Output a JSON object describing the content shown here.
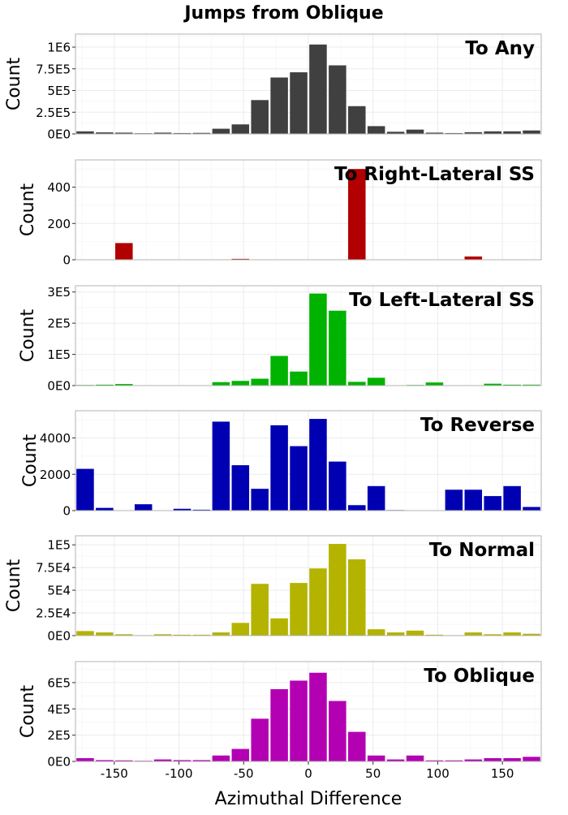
{
  "chart_data": {
    "type": "bar",
    "title": "Jumps from Oblique",
    "xlabel": "Azimuthal Difference",
    "ylabel": "Count",
    "xlim": [
      -180,
      180
    ],
    "x_ticks": [
      -150,
      -100,
      -50,
      0,
      50,
      100,
      150
    ],
    "x_tick_labels": [
      "-150",
      "-100",
      "-50",
      "0",
      "50",
      "100",
      "150"
    ],
    "bin_centers": [
      -172.5,
      -157.5,
      -142.5,
      -127.5,
      -112.5,
      -97.5,
      -82.5,
      -67.5,
      -52.5,
      -37.5,
      -22.5,
      -7.5,
      7.5,
      22.5,
      37.5,
      52.5,
      67.5,
      82.5,
      97.5,
      112.5,
      127.5,
      142.5,
      157.5,
      172.5
    ],
    "grid": true,
    "panels": [
      {
        "label": "To Any",
        "color": "#404040",
        "ylim": [
          0,
          1150000
        ],
        "y_ticks": [
          0,
          250000,
          500000,
          750000,
          1000000
        ],
        "y_tick_labels": [
          "0E0",
          "2.5E5",
          "5E5",
          "7.5E5",
          "1E6"
        ],
        "values": [
          30000,
          18000,
          15000,
          8000,
          15000,
          10000,
          12000,
          60000,
          110000,
          390000,
          650000,
          710000,
          1030000,
          790000,
          320000,
          90000,
          25000,
          50000,
          15000,
          10000,
          20000,
          30000,
          30000,
          40000
        ]
      },
      {
        "label": "To Right-Lateral SS",
        "color": "#b20000",
        "ylim": [
          0,
          550
        ],
        "y_ticks": [
          0,
          200,
          400
        ],
        "y_tick_labels": [
          "0",
          "200",
          "400"
        ],
        "values": [
          0,
          0,
          92,
          0,
          0,
          0,
          0,
          0,
          5,
          0,
          0,
          0,
          0,
          0,
          500,
          0,
          0,
          0,
          0,
          0,
          18,
          0,
          0,
          0
        ]
      },
      {
        "label": "To Left-Lateral SS",
        "color": "#00b300",
        "ylim": [
          0,
          320000
        ],
        "y_ticks": [
          0,
          100000,
          200000,
          300000
        ],
        "y_tick_labels": [
          "0E0",
          "1E5",
          "2E5",
          "3E5"
        ],
        "values": [
          2000,
          3000,
          5000,
          1000,
          1000,
          1000,
          1000,
          11000,
          15000,
          22000,
          95000,
          45000,
          295000,
          240000,
          12000,
          25000,
          1000,
          2000,
          10000,
          1000,
          1000,
          6000,
          3000,
          3000
        ]
      },
      {
        "label": "To Reverse",
        "color": "#0000b3",
        "ylim": [
          0,
          5500
        ],
        "y_ticks": [
          0,
          2000,
          4000
        ],
        "y_tick_labels": [
          "0",
          "2000",
          "4000"
        ],
        "values": [
          2300,
          150,
          0,
          350,
          0,
          100,
          50,
          4900,
          2500,
          1200,
          4700,
          3550,
          5050,
          2700,
          300,
          1350,
          30,
          0,
          0,
          1150,
          1150,
          800,
          1350,
          200
        ]
      },
      {
        "label": "To Normal",
        "color": "#b3b300",
        "ylim": [
          0,
          110000
        ],
        "y_ticks": [
          0,
          25000,
          50000,
          75000,
          100000
        ],
        "y_tick_labels": [
          "0E0",
          "2.5E4",
          "5E4",
          "7.5E4",
          "1E5"
        ],
        "values": [
          5000,
          3500,
          1500,
          500,
          1500,
          1000,
          1000,
          3500,
          14000,
          57000,
          19000,
          58000,
          74000,
          101000,
          84000,
          7000,
          3500,
          5500,
          1000,
          500,
          3500,
          1500,
          3500,
          2000
        ]
      },
      {
        "label": "To Oblique",
        "color": "#b300b3",
        "ylim": [
          0,
          760000
        ],
        "y_ticks": [
          0,
          200000,
          400000,
          600000
        ],
        "y_tick_labels": [
          "0E0",
          "2E5",
          "4E5",
          "6E5"
        ],
        "values": [
          25000,
          10000,
          8000,
          5000,
          15000,
          10000,
          10000,
          45000,
          95000,
          325000,
          550000,
          615000,
          675000,
          460000,
          225000,
          45000,
          15000,
          45000,
          8000,
          8000,
          15000,
          25000,
          25000,
          35000
        ]
      }
    ]
  }
}
